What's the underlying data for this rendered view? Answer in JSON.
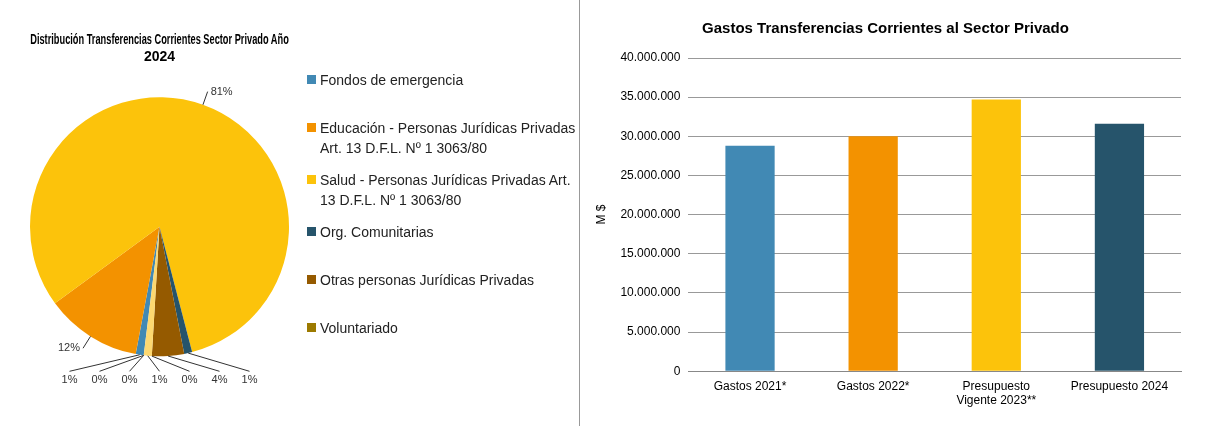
{
  "chart_data": [
    {
      "type": "pie",
      "title": "Distribución Transferencias Corrientes Sector Privado Año 2024",
      "categories": [
        "Fondos de emergencia",
        "Educación - Personas Jurídicas Privadas Art. 13 D.F.L. Nº 1 3063/80",
        "Salud - Personas Jurídicas Privadas Art. 13 D.F.L. Nº 1 3063/80",
        "Org. Comunitarias",
        "Otras personas Jurídicas Privadas",
        "Voluntariado",
        null,
        null,
        null
      ],
      "values": [
        1,
        12,
        81,
        1,
        4,
        0,
        1,
        0,
        0
      ],
      "value_labels": [
        "1%",
        "12%",
        "81%",
        "1%",
        "4%",
        "0%",
        "1%",
        "0%",
        "0%"
      ],
      "colors": [
        "#4189b4",
        "#f39200",
        "#fcc30b",
        "#26546b",
        "#955a00",
        "#9c7a00",
        "#fdd870",
        "#7fb6d6",
        "#f7b860"
      ],
      "legend": "right"
    },
    {
      "type": "bar",
      "title": "Gastos Transferencias Corrientes al Sector Privado",
      "ylabel": "M $",
      "categories": [
        "Gastos 2021*",
        "Gastos 2022*",
        "Presupuesto Vigente 2023**",
        "Presupuesto 2024"
      ],
      "values": [
        28800000,
        30000000,
        34700000,
        31600000
      ],
      "colors": [
        "#4189b4",
        "#f39200",
        "#fcc30b",
        "#26546b"
      ],
      "ylim": [
        0,
        40000000
      ],
      "yticks": [
        {
          "value": 0,
          "label": "0"
        },
        {
          "value": 5000000,
          "label": "5.000.000"
        },
        {
          "value": 10000000,
          "label": "10.000.000"
        },
        {
          "value": 15000000,
          "label": "15.000.000"
        },
        {
          "value": 20000000,
          "label": "20.000.000"
        },
        {
          "value": 25000000,
          "label": "25.000.000"
        },
        {
          "value": 30000000,
          "label": "30.000.000"
        },
        {
          "value": 35000000,
          "label": "35.000.000"
        },
        {
          "value": 40000000,
          "label": "40.000.000"
        }
      ],
      "grid": "y"
    }
  ]
}
